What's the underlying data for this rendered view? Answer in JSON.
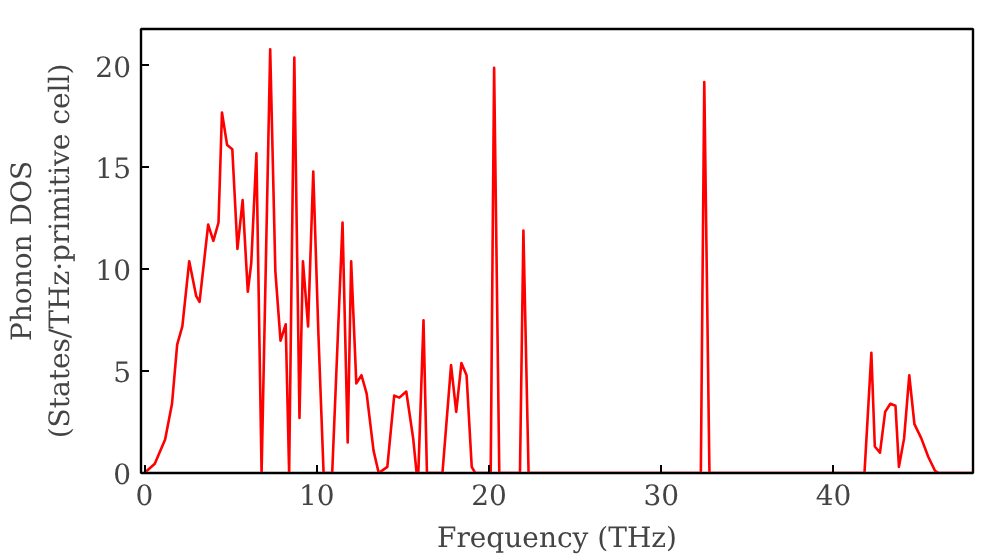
{
  "chart_data": {
    "type": "line",
    "xlabel": "Frequency (THz)",
    "ylabel": "Phonon DOS\n(States/THz·primitive cell)",
    "xlim": [
      -0.2,
      48.1
    ],
    "ylim": [
      0,
      21.8
    ],
    "xticks": [
      0,
      10,
      20,
      30,
      40
    ],
    "yticks": [
      0,
      5,
      10,
      15,
      20
    ],
    "grid": false,
    "line_style": "solid",
    "marker": "none",
    "series": [
      {
        "color": "#ff0000",
        "x": [
          0,
          0.6,
          1.2,
          1.6,
          1.9,
          2.2,
          2.6,
          3.0,
          3.2,
          3.7,
          4.0,
          4.3,
          4.5,
          4.8,
          5.1,
          5.4,
          5.7,
          6.0,
          6.2,
          6.5,
          6.8,
          7.3,
          7.6,
          7.9,
          8.2,
          8.4,
          8.7,
          9.0,
          9.2,
          9.5,
          9.8,
          10.1,
          10.4,
          10.9,
          11.5,
          11.8,
          12.0,
          12.3,
          12.6,
          12.9,
          13.3,
          13.6,
          14.1,
          14.5,
          14.8,
          15.2,
          15.6,
          15.8,
          15.9,
          16.2,
          16.4,
          17.3,
          17.8,
          18.1,
          18.4,
          18.7,
          19.0,
          19.2,
          20.1,
          20.3,
          20.6,
          21.8,
          22.0,
          22.3,
          32.3,
          32.5,
          32.8,
          41.8,
          42.2,
          42.4,
          42.7,
          43.0,
          43.3,
          43.6,
          43.8,
          44.1,
          44.4,
          44.7,
          45.1,
          45.5,
          45.9,
          46.1,
          48.1
        ],
        "values": [
          0,
          0.45,
          1.65,
          3.4,
          6.3,
          7.2,
          10.4,
          8.7,
          8.4,
          12.2,
          11.4,
          12.3,
          17.7,
          16.1,
          15.9,
          11.0,
          13.4,
          8.9,
          10.3,
          15.7,
          0,
          20.8,
          9.9,
          6.5,
          7.3,
          0,
          20.4,
          2.7,
          10.4,
          7.2,
          14.8,
          6.8,
          0,
          0,
          12.3,
          1.5,
          10.4,
          4.4,
          4.8,
          3.9,
          1.1,
          0,
          0.3,
          3.8,
          3.7,
          4.0,
          1.7,
          0,
          0,
          7.5,
          0,
          0,
          5.3,
          3.0,
          5.4,
          4.8,
          0.3,
          0,
          0,
          19.9,
          0,
          0,
          11.9,
          0,
          0,
          19.2,
          0,
          0,
          5.9,
          1.3,
          1.0,
          3.0,
          3.4,
          3.3,
          0.3,
          1.7,
          4.8,
          2.4,
          1.7,
          0.8,
          0.1,
          0,
          0
        ]
      }
    ]
  }
}
